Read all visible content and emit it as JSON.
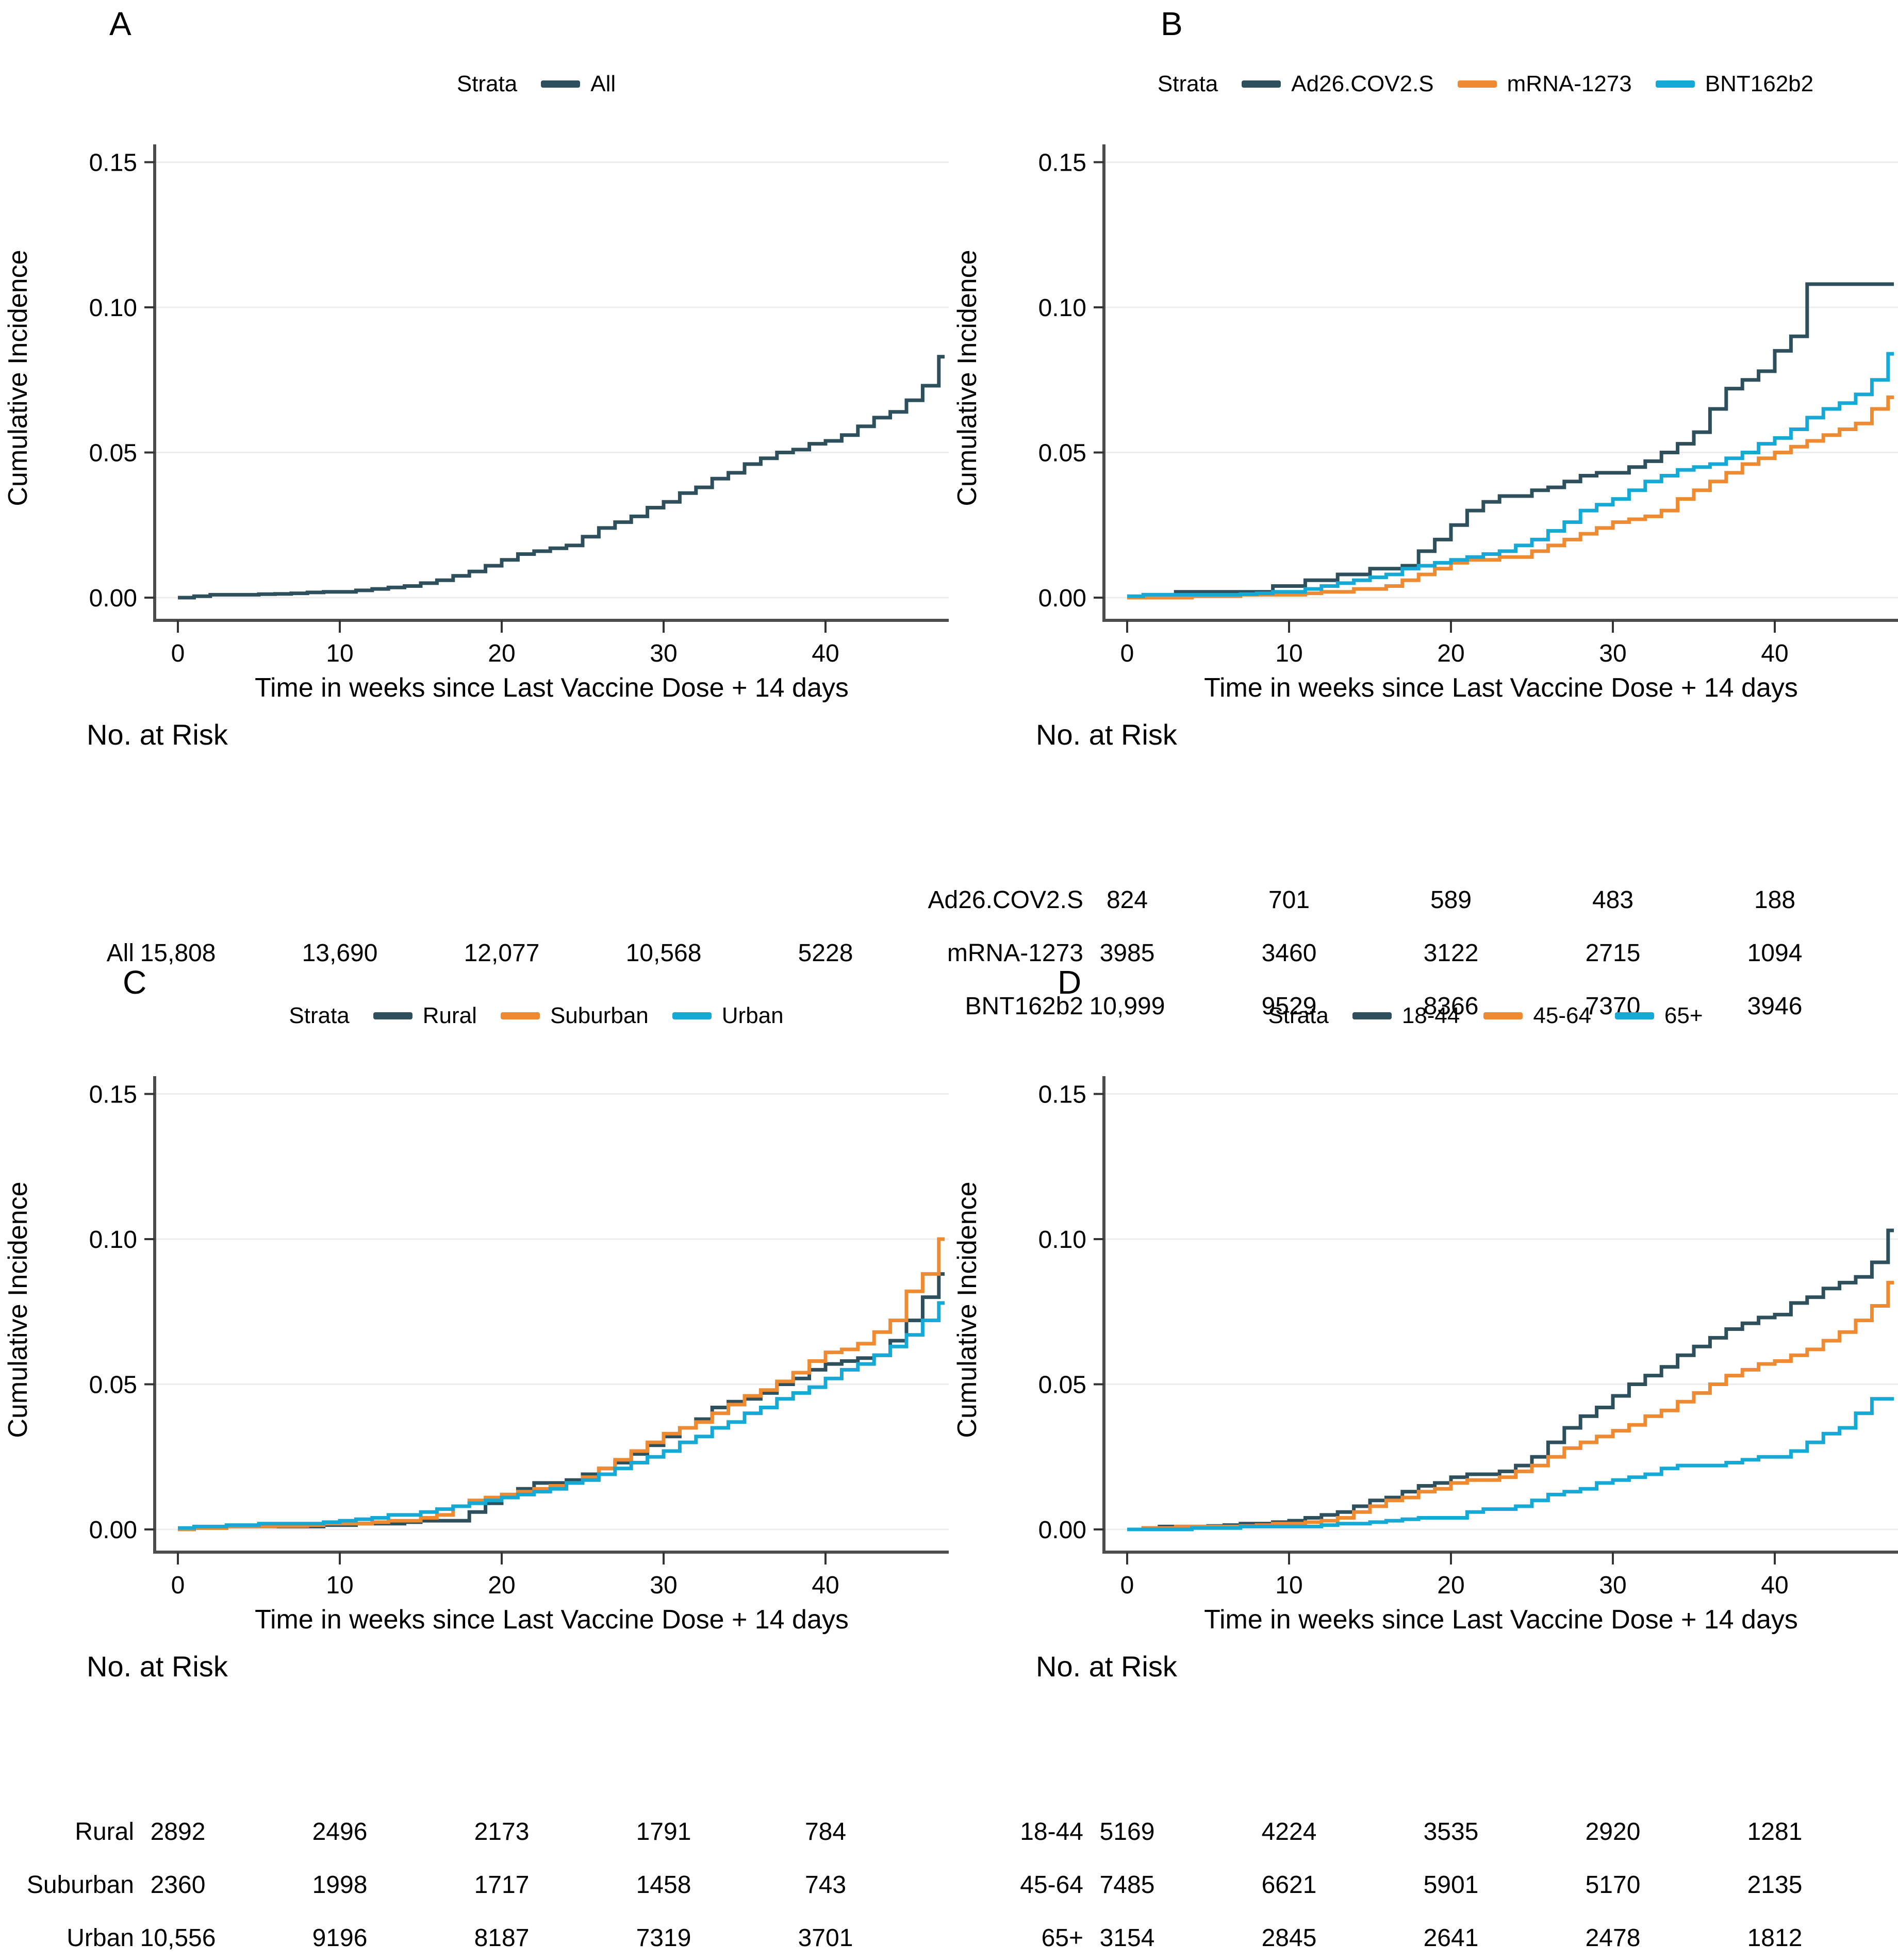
{
  "ui": {
    "legend_title": "Strata",
    "x_axis_label": "Time in weeks since Last Vaccine Dose + 14 days",
    "y_axis_label": "Cumulative Incidence",
    "risk_table_title": "No. at Risk",
    "y_tick_labels": [
      "0.00",
      "0.05",
      "0.10",
      "0.15"
    ],
    "x_tick_labels": [
      "0",
      "10",
      "20",
      "30",
      "40"
    ],
    "colors": {
      "dark_teal": "#2e4f5c",
      "orange": "#ee8a31",
      "cyan": "#17a9d6",
      "gridline": "#ececec",
      "axis": "#4d4d4d"
    }
  },
  "chart_data": [
    {
      "type": "line",
      "step": true,
      "letter": "A",
      "xlabel": "Time in weeks since Last Vaccine Dose + 14 days",
      "ylabel": "Cumulative Incidence",
      "legend_title": "Strata",
      "xlim": [
        0,
        48
      ],
      "ylim": [
        0,
        0.15
      ],
      "x_ticks": [
        0,
        10,
        20,
        30,
        40
      ],
      "y_ticks": [
        0,
        0.05,
        0.1,
        0.15
      ],
      "grid": "horizontal",
      "legend_position": "top",
      "x_weeks": [
        0,
        1,
        2,
        3,
        4,
        5,
        6,
        7,
        8,
        9,
        10,
        11,
        12,
        13,
        14,
        15,
        16,
        17,
        18,
        19,
        20,
        21,
        22,
        23,
        24,
        25,
        26,
        27,
        28,
        29,
        30,
        31,
        32,
        33,
        34,
        35,
        36,
        37,
        38,
        39,
        40,
        41,
        42,
        43,
        44,
        45,
        46,
        47
      ],
      "series": [
        {
          "name": "All",
          "color": "#2e4f5c",
          "values": [
            0,
            0.0005,
            0.001,
            0.001,
            0.001,
            0.0012,
            0.0013,
            0.0015,
            0.0018,
            0.002,
            0.002,
            0.0025,
            0.003,
            0.0035,
            0.004,
            0.005,
            0.006,
            0.0075,
            0.009,
            0.011,
            0.013,
            0.015,
            0.016,
            0.017,
            0.018,
            0.021,
            0.024,
            0.026,
            0.028,
            0.031,
            0.033,
            0.036,
            0.038,
            0.041,
            0.043,
            0.046,
            0.048,
            0.05,
            0.051,
            0.053,
            0.054,
            0.056,
            0.059,
            0.062,
            0.064,
            0.068,
            0.073,
            0.083
          ]
        }
      ],
      "risk_table": {
        "title": "No. at Risk",
        "rows": [
          {
            "label": "All",
            "values": [
              "15,808",
              "13,690",
              "12,077",
              "10,568",
              "5228"
            ]
          }
        ]
      }
    },
    {
      "type": "line",
      "step": true,
      "letter": "B",
      "xlabel": "Time in weeks since Last Vaccine Dose + 14 days",
      "ylabel": "Cumulative Incidence",
      "legend_title": "Strata",
      "xlim": [
        0,
        48
      ],
      "ylim": [
        0,
        0.15
      ],
      "x_ticks": [
        0,
        10,
        20,
        30,
        40
      ],
      "y_ticks": [
        0,
        0.05,
        0.1,
        0.15
      ],
      "grid": "horizontal",
      "legend_position": "top",
      "x_weeks": [
        0,
        1,
        2,
        3,
        4,
        5,
        6,
        7,
        8,
        9,
        10,
        11,
        12,
        13,
        14,
        15,
        16,
        17,
        18,
        19,
        20,
        21,
        22,
        23,
        24,
        25,
        26,
        27,
        28,
        29,
        30,
        31,
        32,
        33,
        34,
        35,
        36,
        37,
        38,
        39,
        40,
        41,
        42,
        43,
        44,
        45,
        46,
        47
      ],
      "series": [
        {
          "name": "Ad26.COV2.S",
          "color": "#2e4f5c",
          "values": [
            0,
            0.001,
            0.001,
            0.002,
            0.002,
            0.002,
            0.002,
            0.002,
            0.002,
            0.004,
            0.004,
            0.006,
            0.006,
            0.008,
            0.008,
            0.01,
            0.01,
            0.011,
            0.016,
            0.02,
            0.025,
            0.03,
            0.033,
            0.035,
            0.035,
            0.037,
            0.038,
            0.04,
            0.042,
            0.043,
            0.043,
            0.045,
            0.047,
            0.05,
            0.053,
            0.057,
            0.065,
            0.072,
            0.075,
            0.078,
            0.085,
            0.09,
            0.108,
            0.108,
            0.108,
            0.108,
            0.108,
            0.108
          ]
        },
        {
          "name": "mRNA-1273",
          "color": "#ee8a31",
          "values": [
            0,
            0,
            0,
            0,
            0.0005,
            0.0005,
            0.0005,
            0.001,
            0.001,
            0.001,
            0.001,
            0.0015,
            0.002,
            0.002,
            0.003,
            0.003,
            0.004,
            0.006,
            0.008,
            0.01,
            0.012,
            0.013,
            0.013,
            0.014,
            0.014,
            0.016,
            0.018,
            0.02,
            0.022,
            0.024,
            0.026,
            0.027,
            0.028,
            0.03,
            0.034,
            0.037,
            0.04,
            0.043,
            0.046,
            0.048,
            0.05,
            0.052,
            0.054,
            0.056,
            0.058,
            0.06,
            0.065,
            0.069
          ]
        },
        {
          "name": "BNT162b2",
          "color": "#17a9d6",
          "values": [
            0.0005,
            0.001,
            0.001,
            0.001,
            0.001,
            0.001,
            0.001,
            0.0012,
            0.0015,
            0.002,
            0.002,
            0.003,
            0.004,
            0.005,
            0.006,
            0.007,
            0.008,
            0.01,
            0.011,
            0.012,
            0.013,
            0.014,
            0.015,
            0.016,
            0.018,
            0.02,
            0.023,
            0.026,
            0.03,
            0.032,
            0.034,
            0.037,
            0.04,
            0.042,
            0.044,
            0.045,
            0.046,
            0.048,
            0.05,
            0.053,
            0.055,
            0.058,
            0.062,
            0.065,
            0.067,
            0.07,
            0.075,
            0.084
          ]
        }
      ],
      "risk_table": {
        "title": "No. at Risk",
        "rows": [
          {
            "label": "Ad26.COV2.S",
            "values": [
              "824",
              "701",
              "589",
              "483",
              "188"
            ]
          },
          {
            "label": "mRNA-1273",
            "values": [
              "3985",
              "3460",
              "3122",
              "2715",
              "1094"
            ]
          },
          {
            "label": "BNT162b2",
            "values": [
              "10,999",
              "9529",
              "8366",
              "7370",
              "3946"
            ]
          }
        ]
      }
    },
    {
      "type": "line",
      "step": true,
      "letter": "C",
      "xlabel": "Time in weeks since Last Vaccine Dose + 14 days",
      "ylabel": "Cumulative Incidence",
      "legend_title": "Strata",
      "xlim": [
        0,
        48
      ],
      "ylim": [
        0,
        0.15
      ],
      "x_ticks": [
        0,
        10,
        20,
        30,
        40
      ],
      "y_ticks": [
        0,
        0.05,
        0.1,
        0.15
      ],
      "grid": "horizontal",
      "legend_position": "top",
      "x_weeks": [
        0,
        1,
        2,
        3,
        4,
        5,
        6,
        7,
        8,
        9,
        10,
        11,
        12,
        13,
        14,
        15,
        16,
        17,
        18,
        19,
        20,
        21,
        22,
        23,
        24,
        25,
        26,
        27,
        28,
        29,
        30,
        31,
        32,
        33,
        34,
        35,
        36,
        37,
        38,
        39,
        40,
        41,
        42,
        43,
        44,
        45,
        46,
        47
      ],
      "series": [
        {
          "name": "Rural",
          "color": "#2e4f5c",
          "values": [
            0,
            0.0005,
            0.0005,
            0.001,
            0.001,
            0.001,
            0.001,
            0.001,
            0.001,
            0.0015,
            0.0015,
            0.002,
            0.002,
            0.002,
            0.0025,
            0.003,
            0.003,
            0.003,
            0.006,
            0.009,
            0.012,
            0.014,
            0.016,
            0.016,
            0.017,
            0.019,
            0.021,
            0.023,
            0.026,
            0.029,
            0.032,
            0.035,
            0.038,
            0.042,
            0.044,
            0.045,
            0.047,
            0.05,
            0.052,
            0.055,
            0.057,
            0.058,
            0.059,
            0.06,
            0.065,
            0.072,
            0.08,
            0.088
          ]
        },
        {
          "name": "Suburban",
          "color": "#ee8a31",
          "values": [
            0,
            0.0005,
            0.0005,
            0.001,
            0.001,
            0.001,
            0.0012,
            0.0012,
            0.0015,
            0.002,
            0.002,
            0.002,
            0.0025,
            0.003,
            0.003,
            0.004,
            0.005,
            0.008,
            0.01,
            0.011,
            0.012,
            0.013,
            0.014,
            0.015,
            0.016,
            0.018,
            0.021,
            0.024,
            0.027,
            0.03,
            0.033,
            0.035,
            0.037,
            0.04,
            0.043,
            0.046,
            0.048,
            0.051,
            0.054,
            0.058,
            0.061,
            0.062,
            0.064,
            0.068,
            0.072,
            0.082,
            0.088,
            0.1
          ]
        },
        {
          "name": "Urban",
          "color": "#17a9d6",
          "values": [
            0.0005,
            0.001,
            0.001,
            0.0015,
            0.0015,
            0.002,
            0.002,
            0.002,
            0.002,
            0.0025,
            0.003,
            0.0035,
            0.004,
            0.005,
            0.005,
            0.006,
            0.007,
            0.008,
            0.009,
            0.01,
            0.011,
            0.012,
            0.013,
            0.014,
            0.016,
            0.017,
            0.019,
            0.021,
            0.023,
            0.025,
            0.027,
            0.03,
            0.032,
            0.035,
            0.037,
            0.04,
            0.042,
            0.045,
            0.047,
            0.049,
            0.052,
            0.055,
            0.057,
            0.06,
            0.063,
            0.067,
            0.072,
            0.078
          ]
        }
      ],
      "risk_table": {
        "title": "No. at Risk",
        "rows": [
          {
            "label": "Rural",
            "values": [
              "2892",
              "2496",
              "2173",
              "1791",
              "784"
            ]
          },
          {
            "label": "Suburban",
            "values": [
              "2360",
              "1998",
              "1717",
              "1458",
              "743"
            ]
          },
          {
            "label": "Urban",
            "values": [
              "10,556",
              "9196",
              "8187",
              "7319",
              "3701"
            ]
          }
        ]
      }
    },
    {
      "type": "line",
      "step": true,
      "letter": "D",
      "xlabel": "Time in weeks since Last Vaccine Dose + 14 days",
      "ylabel": "Cumulative Incidence",
      "legend_title": "Strata",
      "xlim": [
        0,
        48
      ],
      "ylim": [
        0,
        0.15
      ],
      "x_ticks": [
        0,
        10,
        20,
        30,
        40
      ],
      "y_ticks": [
        0,
        0.05,
        0.1,
        0.15
      ],
      "grid": "horizontal",
      "legend_position": "top",
      "x_weeks": [
        0,
        1,
        2,
        3,
        4,
        5,
        6,
        7,
        8,
        9,
        10,
        11,
        12,
        13,
        14,
        15,
        16,
        17,
        18,
        19,
        20,
        21,
        22,
        23,
        24,
        25,
        26,
        27,
        28,
        29,
        30,
        31,
        32,
        33,
        34,
        35,
        36,
        37,
        38,
        39,
        40,
        41,
        42,
        43,
        44,
        45,
        46,
        47
      ],
      "series": [
        {
          "name": "18-44",
          "color": "#2e4f5c",
          "values": [
            0,
            0.0005,
            0.001,
            0.001,
            0.001,
            0.0012,
            0.0015,
            0.002,
            0.002,
            0.0025,
            0.003,
            0.004,
            0.005,
            0.006,
            0.008,
            0.01,
            0.011,
            0.013,
            0.015,
            0.016,
            0.018,
            0.019,
            0.019,
            0.02,
            0.022,
            0.025,
            0.03,
            0.035,
            0.039,
            0.042,
            0.046,
            0.05,
            0.053,
            0.056,
            0.06,
            0.063,
            0.066,
            0.069,
            0.071,
            0.073,
            0.074,
            0.078,
            0.08,
            0.083,
            0.085,
            0.087,
            0.092,
            0.103
          ]
        },
        {
          "name": "45-64",
          "color": "#ee8a31",
          "values": [
            0,
            0.0005,
            0.0005,
            0.001,
            0.001,
            0.001,
            0.001,
            0.0012,
            0.0015,
            0.002,
            0.002,
            0.0025,
            0.003,
            0.004,
            0.006,
            0.008,
            0.01,
            0.011,
            0.013,
            0.014,
            0.016,
            0.017,
            0.017,
            0.018,
            0.02,
            0.022,
            0.025,
            0.028,
            0.03,
            0.032,
            0.034,
            0.036,
            0.039,
            0.041,
            0.044,
            0.047,
            0.05,
            0.053,
            0.055,
            0.057,
            0.058,
            0.06,
            0.062,
            0.065,
            0.068,
            0.072,
            0.077,
            0.085
          ]
        },
        {
          "name": "65+",
          "color": "#17a9d6",
          "values": [
            0,
            0,
            0,
            0,
            0.0005,
            0.0005,
            0.0005,
            0.001,
            0.001,
            0.001,
            0.001,
            0.001,
            0.0015,
            0.002,
            0.002,
            0.0025,
            0.003,
            0.0035,
            0.004,
            0.004,
            0.004,
            0.006,
            0.007,
            0.007,
            0.008,
            0.01,
            0.012,
            0.013,
            0.014,
            0.016,
            0.017,
            0.018,
            0.019,
            0.021,
            0.022,
            0.022,
            0.022,
            0.023,
            0.024,
            0.025,
            0.025,
            0.027,
            0.03,
            0.033,
            0.035,
            0.04,
            0.045,
            0.045
          ]
        }
      ],
      "risk_table": {
        "title": "No. at Risk",
        "rows": [
          {
            "label": "18-44",
            "values": [
              "5169",
              "4224",
              "3535",
              "2920",
              "1281"
            ]
          },
          {
            "label": "45-64",
            "values": [
              "7485",
              "6621",
              "5901",
              "5170",
              "2135"
            ]
          },
          {
            "label": "65+",
            "values": [
              "3154",
              "2845",
              "2641",
              "2478",
              "1812"
            ]
          }
        ]
      }
    }
  ]
}
